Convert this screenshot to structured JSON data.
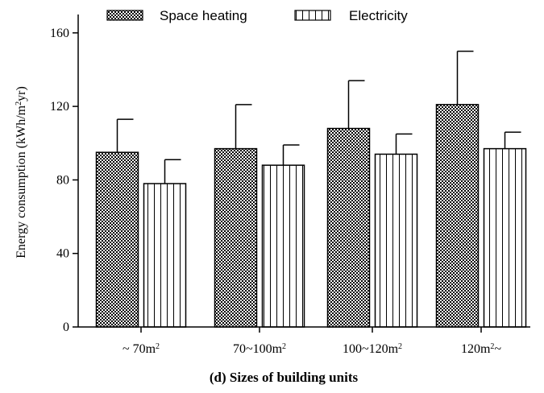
{
  "chart_data": {
    "type": "bar",
    "categories": [
      "~ 70m²",
      "70~100m²",
      "100~120m²",
      "120m²~"
    ],
    "series": [
      {
        "name": "Space heating",
        "values": [
          95,
          97,
          108,
          121
        ],
        "errors": [
          18,
          24,
          26,
          29
        ],
        "pattern": "checker"
      },
      {
        "name": "Electricity",
        "values": [
          78,
          88,
          94,
          97
        ],
        "errors": [
          13,
          11,
          11,
          9
        ],
        "pattern": "vertical-stripes"
      }
    ],
    "ylabel": "Energy consumption (kWh/m²yr)",
    "xlabel": "(d) Sizes of building units",
    "ylim": [
      0,
      170
    ],
    "yticks": [
      "0",
      "40",
      "80",
      "120",
      "160"
    ],
    "ytick_values": [
      0,
      40,
      80,
      120,
      160
    ],
    "grid": false,
    "legend_position": "top"
  }
}
